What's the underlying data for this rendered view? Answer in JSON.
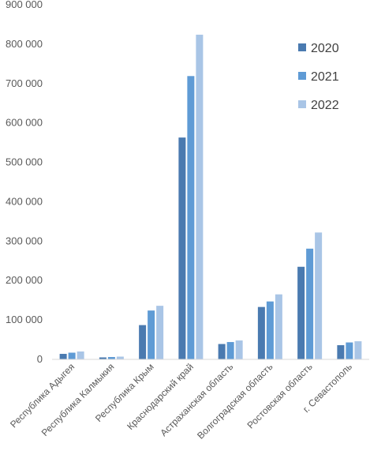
{
  "chart_data": {
    "type": "bar",
    "title": "",
    "xlabel": "",
    "ylabel": "",
    "ylim": [
      0,
      900000
    ],
    "yticks": [
      0,
      100000,
      200000,
      300000,
      400000,
      500000,
      600000,
      700000,
      800000,
      900000
    ],
    "ytick_labels": [
      "0",
      "100 000",
      "200 000",
      "300 000",
      "400 000",
      "500 000",
      "600 000",
      "700 000",
      "800 000",
      "900 000"
    ],
    "grid": false,
    "legend_position": "top-right",
    "categories": [
      "Республика Адыгея",
      "Республика Калмыкия",
      "Республика Крым",
      "Краснодарский край",
      "Астраханская область",
      "Волгоградская область",
      "Ростовская область",
      "г. Севастополь"
    ],
    "series": [
      {
        "name": "2020",
        "color": "#4a7ab0",
        "values": [
          14000,
          5000,
          87000,
          563000,
          39000,
          133000,
          235000,
          36000
        ]
      },
      {
        "name": "2021",
        "color": "#5f9bd5",
        "values": [
          17000,
          6000,
          124000,
          719000,
          44000,
          147000,
          281000,
          43000
        ]
      },
      {
        "name": "2022",
        "color": "#a9c5e6",
        "values": [
          20000,
          7000,
          136000,
          824000,
          48000,
          165000,
          322000,
          46000
        ]
      }
    ]
  }
}
